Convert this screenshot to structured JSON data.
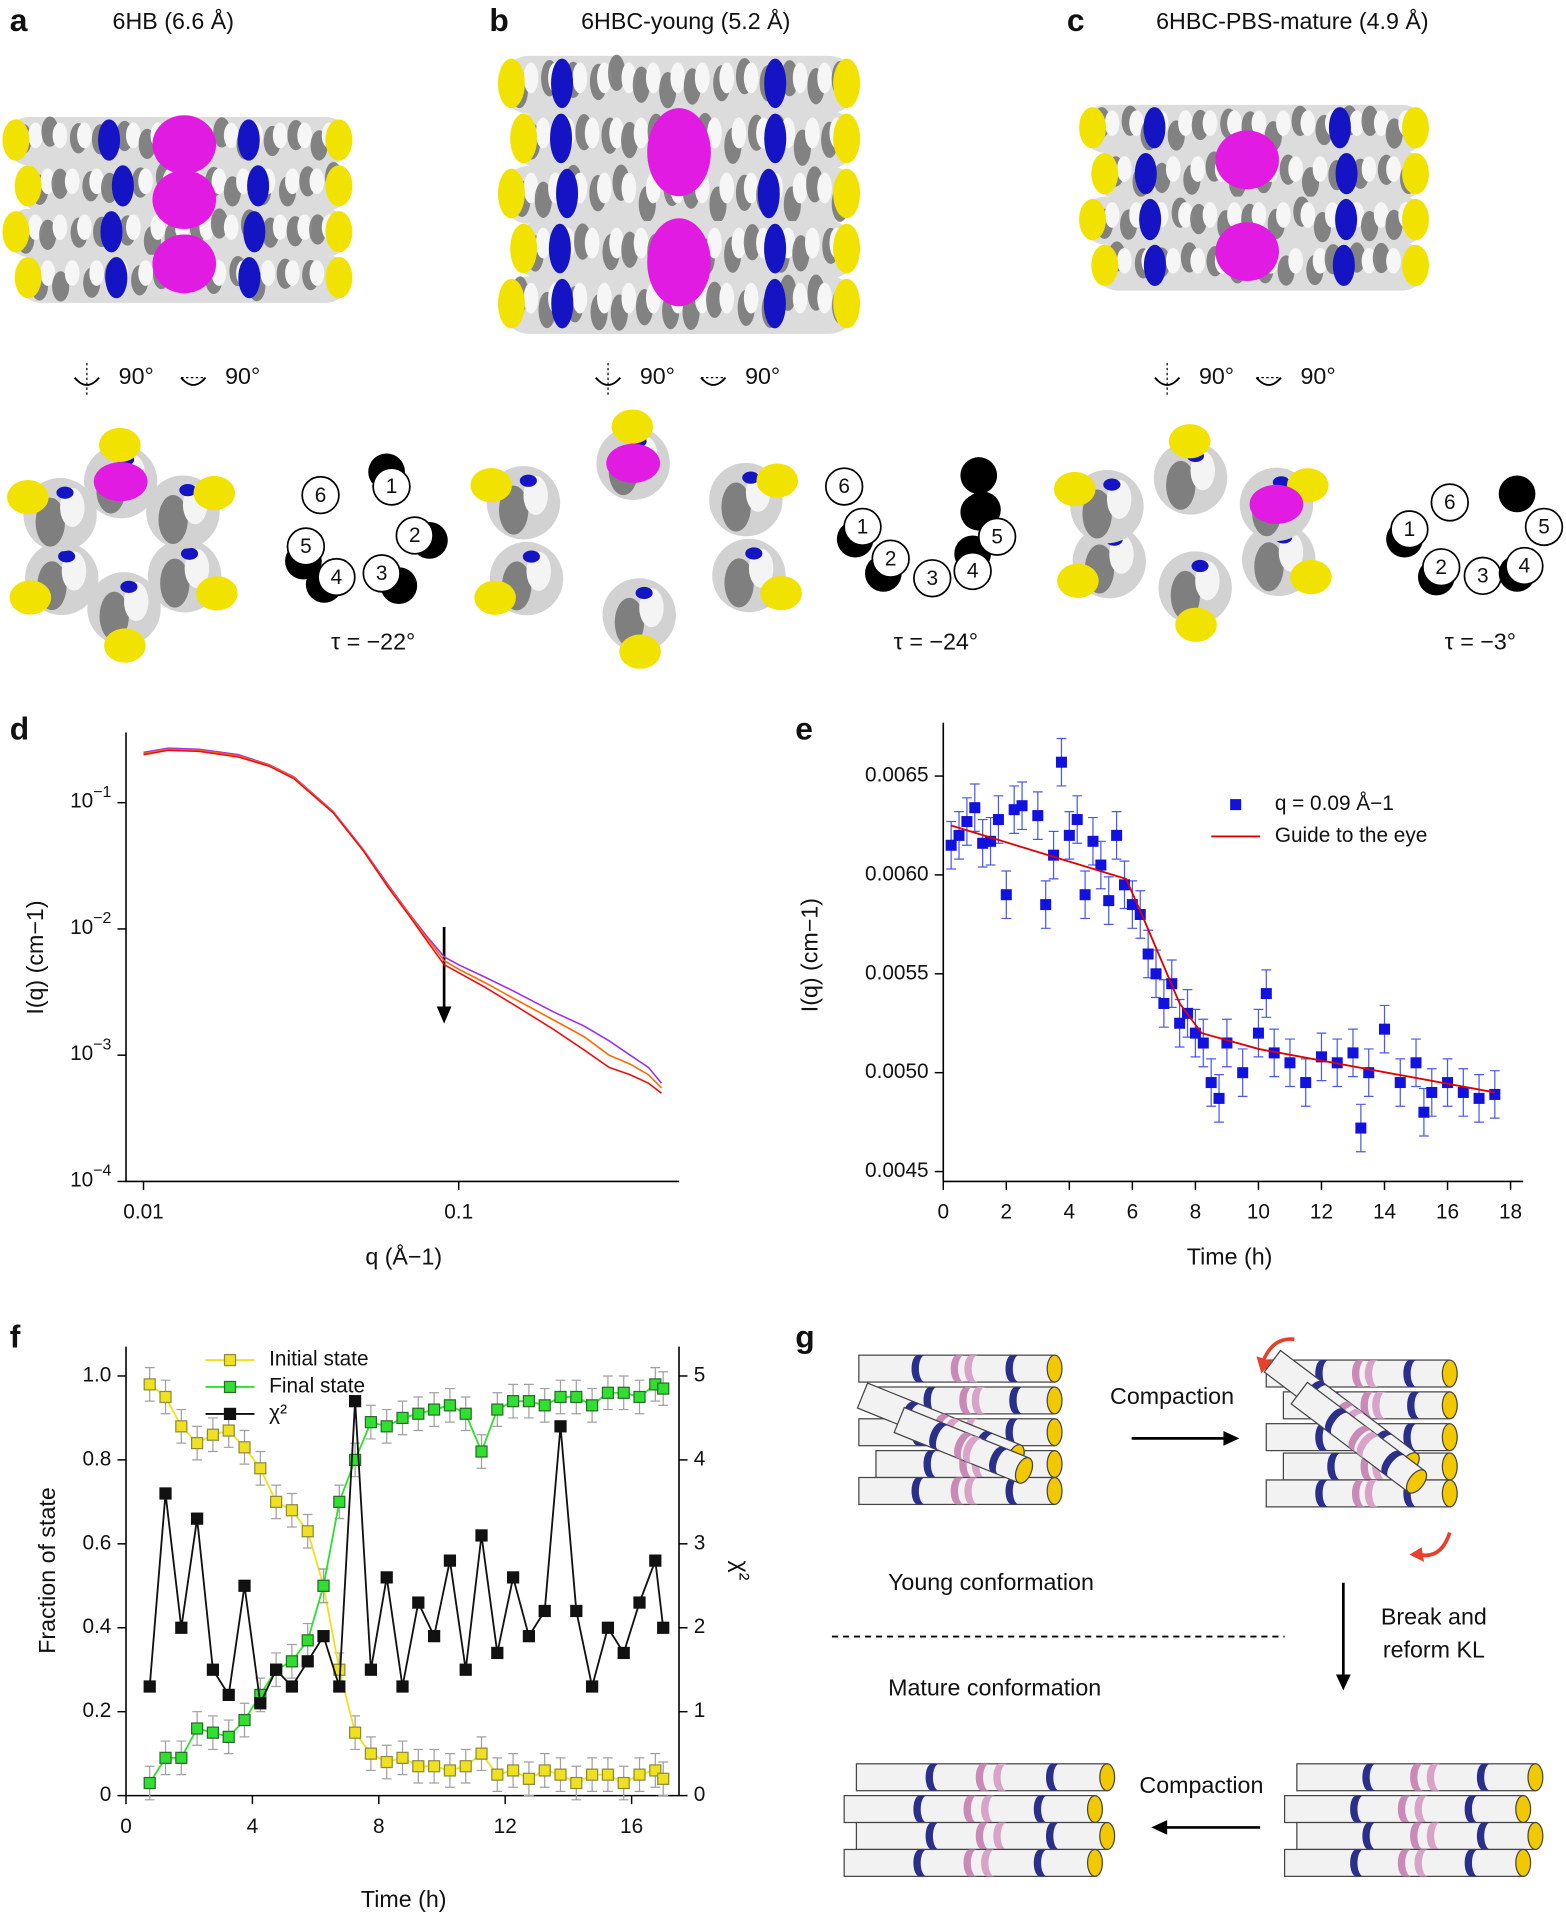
{
  "structures": [
    {
      "letter": "a",
      "title": "6HB (6.6 Å)",
      "rotations": [
        "90°",
        "90°"
      ],
      "wheel": [
        "1",
        "2",
        "3",
        "4",
        "5",
        "6"
      ],
      "tau": "τ = −22°"
    },
    {
      "letter": "b",
      "title": "6HBC-young (5.2 Å)",
      "rotations": [
        "90°",
        "90°"
      ],
      "wheel": [
        "1",
        "2",
        "3",
        "4",
        "5",
        "6"
      ],
      "tau": "τ = −24°"
    },
    {
      "letter": "c",
      "title": "6HBC-PBS-mature (4.9 Å)",
      "rotations": [
        "90°",
        "90°"
      ],
      "wheel": [
        "1",
        "2",
        "3",
        "4",
        "5",
        "6"
      ],
      "tau": "τ = −3°"
    }
  ],
  "chart_data": [
    {
      "type": "line",
      "panel": "d",
      "xlabel": "q (Å−1)",
      "ylabel": "I(q) (cm−1)",
      "xscale": "log",
      "yscale": "log",
      "xlim": [
        0.0088,
        0.5
      ],
      "ylim": [
        0.0001,
        0.36
      ],
      "xticks": [
        0.01,
        0.1
      ],
      "yticks": [
        {
          "value": 0.0001,
          "label": "10−4"
        },
        {
          "value": 0.001,
          "label": "10−3"
        },
        {
          "value": 0.01,
          "label": "10−2"
        },
        {
          "value": 0.1,
          "label": "10−1"
        }
      ],
      "x": [
        0.01,
        0.012,
        0.015,
        0.02,
        0.025,
        0.03,
        0.04,
        0.05,
        0.06,
        0.07,
        0.08,
        0.09,
        0.1,
        0.12,
        0.15,
        0.2,
        0.25,
        0.3,
        0.35,
        0.4,
        0.44
      ],
      "series": [
        {
          "color": "#9b30f0",
          "values": [
            0.25,
            0.27,
            0.265,
            0.24,
            0.2,
            0.16,
            0.085,
            0.042,
            0.022,
            0.013,
            0.0085,
            0.006,
            0.0052,
            0.0042,
            0.0032,
            0.0022,
            0.0017,
            0.0013,
            0.001,
            0.0008,
            0.0006
          ]
        },
        {
          "color": "#ff6a00",
          "values": [
            0.245,
            0.265,
            0.26,
            0.235,
            0.198,
            0.158,
            0.084,
            0.0415,
            0.0215,
            0.0128,
            0.0082,
            0.0056,
            0.0048,
            0.0038,
            0.0028,
            0.0019,
            0.0014,
            0.001,
            0.00085,
            0.0007,
            0.00055
          ]
        },
        {
          "color": "#ee1010",
          "values": [
            0.24,
            0.26,
            0.255,
            0.23,
            0.195,
            0.155,
            0.083,
            0.041,
            0.021,
            0.0125,
            0.0078,
            0.0052,
            0.0045,
            0.0035,
            0.0025,
            0.0016,
            0.0011,
            0.0008,
            0.0007,
            0.0006,
            0.0005
          ]
        }
      ]
    },
    {
      "type": "scatter",
      "panel": "e",
      "xlabel": "Time (h)",
      "ylabel": "I(q) (cm−1)",
      "xlim": [
        0,
        18.4
      ],
      "ylim": [
        0.00445,
        0.00677
      ],
      "xticks": [
        0,
        2,
        4,
        6,
        8,
        10,
        12,
        14,
        16,
        18
      ],
      "yticks": [
        {
          "value": 0.0045,
          "label": "0.0045"
        },
        {
          "value": 0.005,
          "label": "0.0050"
        },
        {
          "value": 0.0055,
          "label": "0.0055"
        },
        {
          "value": 0.006,
          "label": "0.0060"
        },
        {
          "value": 0.0065,
          "label": "0.0065"
        }
      ],
      "legend": true,
      "series": [
        {
          "name": "q = 0.09 Å−1",
          "type": "scatter",
          "color": "#1212e0",
          "x": [
            0.25,
            0.5,
            0.75,
            1.0,
            1.25,
            1.5,
            1.75,
            2.0,
            2.25,
            2.5,
            3.0,
            3.25,
            3.5,
            3.75,
            4.0,
            4.25,
            4.5,
            4.75,
            5.0,
            5.25,
            5.5,
            5.75,
            6.0,
            6.25,
            6.5,
            6.75,
            7.0,
            7.25,
            7.5,
            7.75,
            8.0,
            8.25,
            8.5,
            8.75,
            9.0,
            9.5,
            10.0,
            10.25,
            10.5,
            11.0,
            11.5,
            12.0,
            12.5,
            13.0,
            13.25,
            13.5,
            14.0,
            14.5,
            15.0,
            15.25,
            15.5,
            16.0,
            16.5,
            17.0,
            17.5
          ],
          "values": [
            0.00615,
            0.0062,
            0.00627,
            0.00634,
            0.00616,
            0.00617,
            0.00628,
            0.0059,
            0.00633,
            0.00635,
            0.0063,
            0.00585,
            0.0061,
            0.00657,
            0.0062,
            0.00628,
            0.0059,
            0.00617,
            0.00605,
            0.00587,
            0.0062,
            0.00595,
            0.00585,
            0.0058,
            0.0056,
            0.0055,
            0.00535,
            0.00545,
            0.00525,
            0.0053,
            0.0052,
            0.00515,
            0.00495,
            0.00487,
            0.00515,
            0.005,
            0.0052,
            0.0054,
            0.0051,
            0.00505,
            0.00495,
            0.00508,
            0.00505,
            0.0051,
            0.00472,
            0.005,
            0.00522,
            0.00495,
            0.00505,
            0.0048,
            0.0049,
            0.00495,
            0.0049,
            0.00487,
            0.00489
          ],
          "errors": [
            0.00012,
            0.00012,
            0.00012,
            0.00012,
            0.00012,
            0.00012,
            0.00012,
            0.00012,
            0.00012,
            0.00012,
            0.00012,
            0.00012,
            0.00012,
            0.00012,
            0.00012,
            0.00012,
            0.00012,
            0.00012,
            0.00012,
            0.00012,
            0.00012,
            0.00012,
            0.00012,
            0.00012,
            0.00012,
            0.00012,
            0.00012,
            0.00012,
            0.00012,
            0.00012,
            0.00012,
            0.00012,
            0.00012,
            0.00012,
            0.00012,
            0.00012,
            0.00012,
            0.00012,
            0.00012,
            0.00012,
            0.00012,
            0.00012,
            0.00012,
            0.00012,
            0.00012,
            0.00012,
            0.00012,
            0.00012,
            0.00012,
            0.00012,
            0.00012,
            0.00012,
            0.00012,
            0.00012,
            0.00012
          ],
          "error_color": "#4a5ae8"
        },
        {
          "name": "Guide to the eye",
          "type": "line",
          "color": "#e00000",
          "x": [
            0.25,
            5.8,
            6.3,
            7.5,
            8.2,
            10,
            17.5
          ],
          "values": [
            0.00625,
            0.00598,
            0.0058,
            0.00535,
            0.0052,
            0.00512,
            0.0049
          ]
        }
      ]
    },
    {
      "type": "line",
      "panel": "f",
      "xlabel": "Time (h)",
      "ylabel": "Fraction of state",
      "y2label": "χ²",
      "xlim": [
        0,
        17.5
      ],
      "ylim": [
        0,
        1.07
      ],
      "y2lim": [
        0,
        5.35
      ],
      "xticks": [
        0,
        4,
        8,
        12,
        16
      ],
      "yticks": [
        0,
        0.2,
        0.4,
        0.6,
        0.8,
        {
          "value": 1,
          "label": "1.0"
        }
      ],
      "y2ticks": [
        0,
        1,
        2,
        3,
        4,
        5
      ],
      "legend": true,
      "x": [
        0.75,
        1.25,
        1.75,
        2.25,
        2.75,
        3.25,
        3.75,
        4.25,
        4.75,
        5.25,
        5.75,
        6.25,
        6.75,
        7.25,
        7.75,
        8.25,
        8.75,
        9.25,
        9.75,
        10.25,
        10.75,
        11.25,
        11.75,
        12.25,
        12.75,
        13.25,
        13.75,
        14.25,
        14.75,
        15.25,
        15.75,
        16.25,
        16.75,
        17.0
      ],
      "series": [
        {
          "name": "Initial state",
          "color": "#f0e020",
          "marker": true,
          "edgecolor": "#8a8a40",
          "error_color": "#a0a0a0",
          "values": [
            0.98,
            0.95,
            0.88,
            0.84,
            0.86,
            0.87,
            0.83,
            0.78,
            0.7,
            0.68,
            0.63,
            0.5,
            0.3,
            0.15,
            0.1,
            0.08,
            0.09,
            0.07,
            0.07,
            0.06,
            0.07,
            0.1,
            0.05,
            0.06,
            0.04,
            0.06,
            0.05,
            0.03,
            0.05,
            0.05,
            0.03,
            0.05,
            0.06,
            0.04
          ],
          "errors": [
            0.04,
            0.04,
            0.04,
            0.04,
            0.04,
            0.04,
            0.04,
            0.04,
            0.04,
            0.04,
            0.04,
            0.04,
            0.04,
            0.04,
            0.04,
            0.04,
            0.04,
            0.04,
            0.04,
            0.04,
            0.04,
            0.04,
            0.04,
            0.04,
            0.04,
            0.04,
            0.04,
            0.04,
            0.04,
            0.04,
            0.04,
            0.04,
            0.04,
            0.04
          ]
        },
        {
          "name": "Final state",
          "color": "#30e030",
          "marker": true,
          "edgecolor": "#2a6a2a",
          "error_color": "#a0a0a0",
          "values": [
            0.03,
            0.09,
            0.09,
            0.16,
            0.15,
            0.14,
            0.18,
            0.24,
            0.3,
            0.32,
            0.37,
            0.5,
            0.7,
            0.8,
            0.89,
            0.88,
            0.9,
            0.91,
            0.92,
            0.93,
            0.91,
            0.82,
            0.92,
            0.94,
            0.94,
            0.93,
            0.95,
            0.95,
            0.93,
            0.96,
            0.96,
            0.95,
            0.98,
            0.97
          ],
          "errors": [
            0.04,
            0.04,
            0.04,
            0.04,
            0.04,
            0.04,
            0.04,
            0.04,
            0.04,
            0.04,
            0.04,
            0.04,
            0.04,
            0.04,
            0.04,
            0.04,
            0.04,
            0.04,
            0.04,
            0.04,
            0.04,
            0.04,
            0.04,
            0.04,
            0.04,
            0.04,
            0.04,
            0.04,
            0.04,
            0.04,
            0.04,
            0.04,
            0.04,
            0.04
          ]
        },
        {
          "name": "χ²",
          "color": "#111111",
          "marker": true,
          "edgecolor": "#111111",
          "axis": "y2",
          "values": [
            1.3,
            3.6,
            2.0,
            3.3,
            1.5,
            1.2,
            2.5,
            1.1,
            1.5,
            1.3,
            1.6,
            1.9,
            1.3,
            4.7,
            1.5,
            2.6,
            1.3,
            2.3,
            1.9,
            2.8,
            1.5,
            3.1,
            1.7,
            2.6,
            1.9,
            2.2,
            4.4,
            2.2,
            1.3,
            2.0,
            1.7,
            2.3,
            2.8,
            2.0
          ]
        }
      ]
    }
  ],
  "schematic": {
    "letter": "g",
    "compaction_top": "Compaction",
    "young": "Young conformation",
    "mature": "Mature conformation",
    "break": [
      "Break and",
      "reform KL"
    ],
    "compaction_bottom": "Compaction"
  }
}
